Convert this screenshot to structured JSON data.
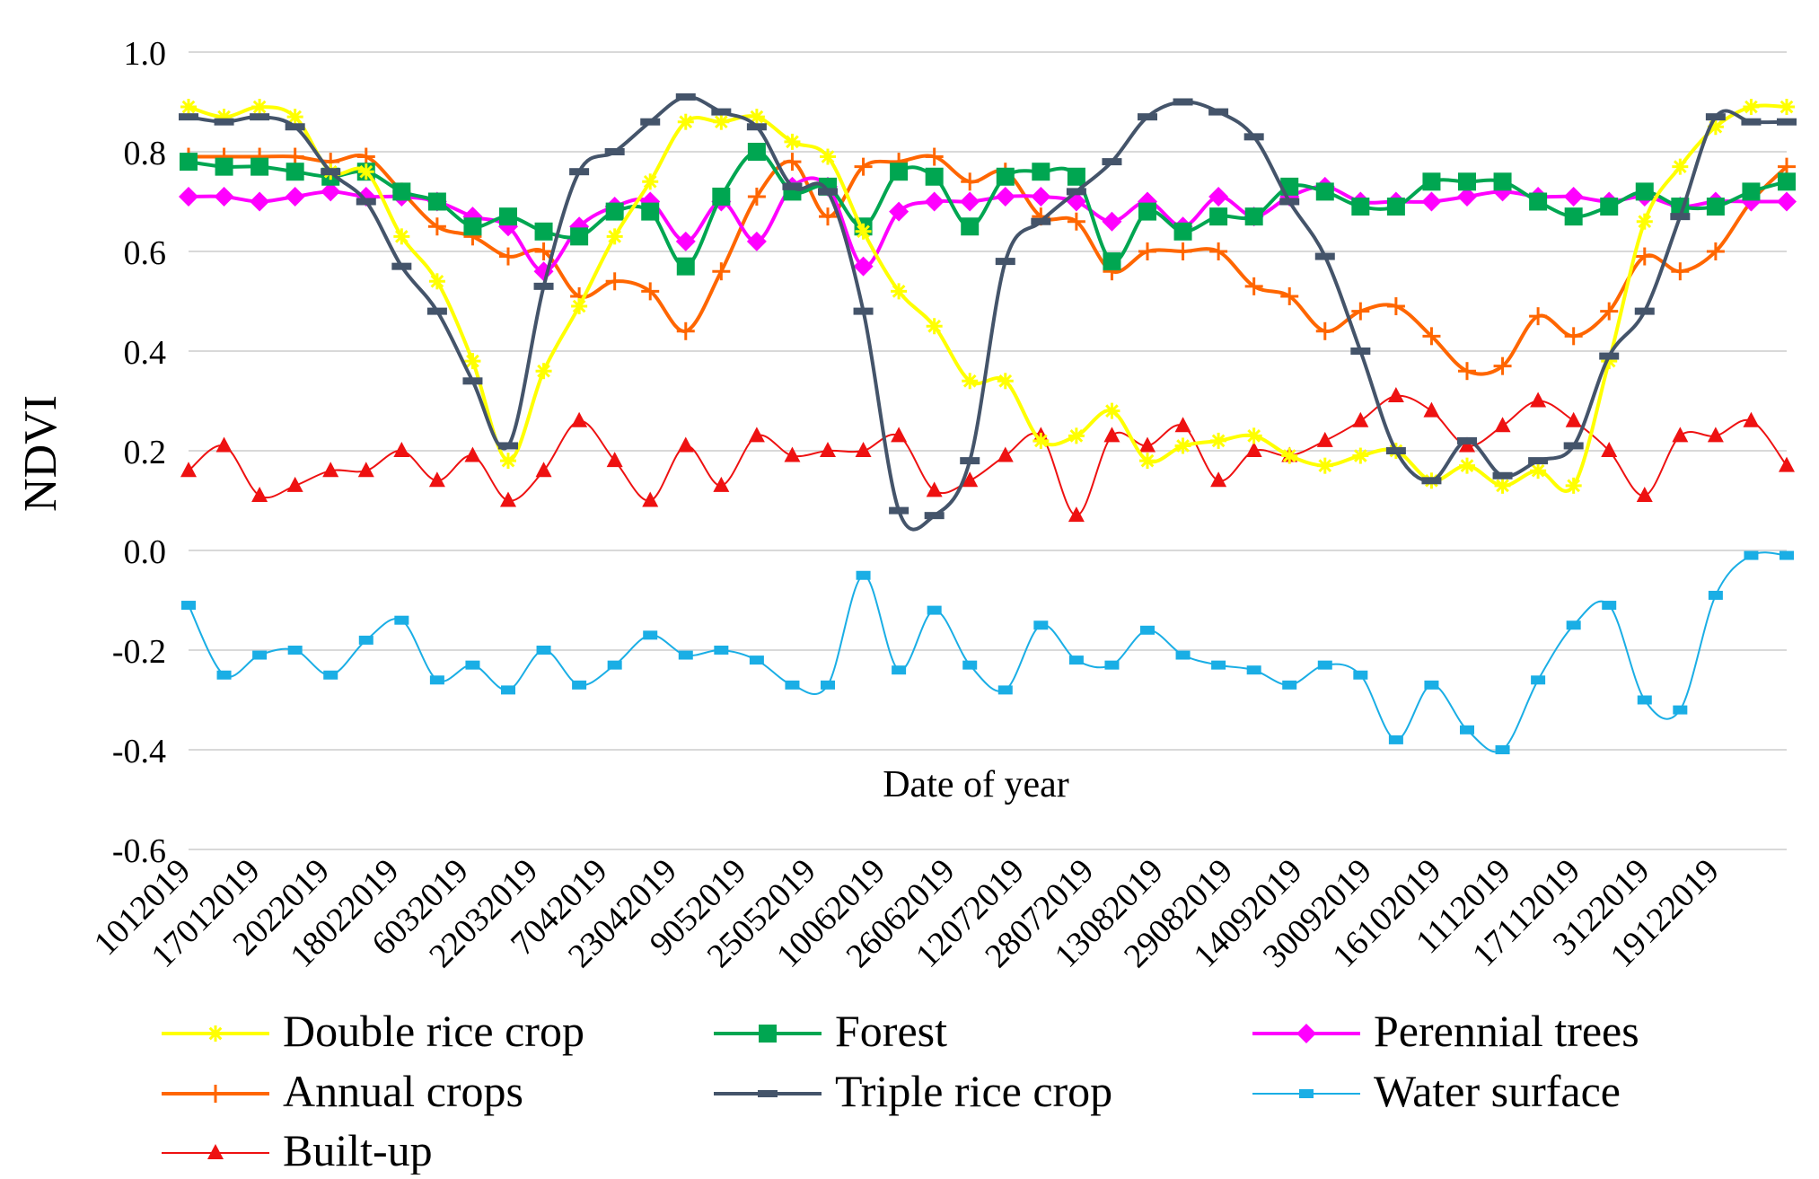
{
  "chart_data": {
    "type": "line",
    "title": "",
    "xlabel": "Date of year",
    "ylabel": "NDVI",
    "ylim": [
      -0.6,
      1.0
    ],
    "y_ticks": [
      "1.0",
      "0.8",
      "0.6",
      "0.4",
      "0.2",
      "0.0",
      "-0.2",
      "-0.4",
      "-0.6"
    ],
    "grid": "horizontal",
    "legend_position": "bottom",
    "x_tick_labels": [
      "1012019",
      "17012019",
      "2022019",
      "18022019",
      "6032019",
      "22032019",
      "7042019",
      "23042019",
      "9052019",
      "25052019",
      "10062019",
      "26062019",
      "12072019",
      "28072019",
      "13082019",
      "29082019",
      "14092019",
      "30092019",
      "16102019",
      "1112019",
      "17112019",
      "3122019",
      "19122019"
    ],
    "series": [
      {
        "name": "Double rice crop",
        "color": "#FFFF00",
        "marker": "star",
        "line_width": 4,
        "values": [
          0.89,
          0.87,
          0.89,
          0.87,
          0.76,
          0.76,
          0.63,
          0.54,
          0.38,
          0.18,
          0.36,
          0.49,
          0.63,
          0.74,
          0.86,
          0.86,
          0.87,
          0.82,
          0.79,
          0.64,
          0.52,
          0.45,
          0.34,
          0.34,
          0.22,
          0.23,
          0.28,
          0.18,
          0.21,
          0.22,
          0.23,
          0.19,
          0.17,
          0.19,
          0.2,
          0.14,
          0.17,
          0.13,
          0.16,
          0.13,
          0.38,
          0.66,
          0.77,
          0.85,
          0.89,
          0.89
        ]
      },
      {
        "name": "Forest",
        "color": "#00A651",
        "marker": "square",
        "line_width": 4,
        "values": [
          0.78,
          0.77,
          0.77,
          0.76,
          0.75,
          0.76,
          0.72,
          0.7,
          0.65,
          0.67,
          0.64,
          0.63,
          0.68,
          0.68,
          0.57,
          0.71,
          0.8,
          0.72,
          0.73,
          0.65,
          0.76,
          0.75,
          0.65,
          0.75,
          0.76,
          0.75,
          0.58,
          0.68,
          0.64,
          0.67,
          0.67,
          0.73,
          0.72,
          0.69,
          0.69,
          0.74,
          0.74,
          0.74,
          0.7,
          0.67,
          0.69,
          0.72,
          0.69,
          0.69,
          0.72,
          0.74
        ]
      },
      {
        "name": "Perennial trees",
        "color": "#FF00FF",
        "marker": "diamond",
        "line_width": 4,
        "values": [
          0.71,
          0.71,
          0.7,
          0.71,
          0.72,
          0.71,
          0.71,
          0.7,
          0.67,
          0.65,
          0.56,
          0.65,
          0.69,
          0.7,
          0.62,
          0.7,
          0.62,
          0.73,
          0.73,
          0.57,
          0.68,
          0.7,
          0.7,
          0.71,
          0.71,
          0.7,
          0.66,
          0.7,
          0.65,
          0.71,
          0.67,
          0.71,
          0.73,
          0.7,
          0.7,
          0.7,
          0.71,
          0.72,
          0.71,
          0.71,
          0.7,
          0.71,
          0.69,
          0.7,
          0.7,
          0.7
        ]
      },
      {
        "name": "Annual crops",
        "color": "#FF6600",
        "marker": "plus",
        "line_width": 4,
        "values": [
          0.79,
          0.79,
          0.79,
          0.79,
          0.78,
          0.79,
          0.72,
          0.65,
          0.63,
          0.59,
          0.6,
          0.51,
          0.54,
          0.52,
          0.44,
          0.56,
          0.71,
          0.78,
          0.67,
          0.77,
          0.78,
          0.79,
          0.74,
          0.76,
          0.67,
          0.66,
          0.56,
          0.6,
          0.6,
          0.6,
          0.53,
          0.51,
          0.44,
          0.48,
          0.49,
          0.43,
          0.36,
          0.37,
          0.47,
          0.43,
          0.48,
          0.59,
          0.56,
          0.6,
          0.7,
          0.77
        ]
      },
      {
        "name": "Triple rice crop",
        "color": "#44546A",
        "marker": "dash",
        "line_width": 4,
        "values": [
          0.87,
          0.86,
          0.87,
          0.85,
          0.76,
          0.7,
          0.57,
          0.48,
          0.34,
          0.21,
          0.53,
          0.76,
          0.8,
          0.86,
          0.91,
          0.88,
          0.85,
          0.73,
          0.72,
          0.48,
          0.08,
          0.07,
          0.18,
          0.58,
          0.66,
          0.72,
          0.78,
          0.87,
          0.9,
          0.88,
          0.83,
          0.7,
          0.59,
          0.4,
          0.2,
          0.14,
          0.22,
          0.15,
          0.18,
          0.21,
          0.39,
          0.48,
          0.67,
          0.87,
          0.86,
          0.86
        ]
      },
      {
        "name": "Water surface",
        "color": "#1AAEE5",
        "marker": "small-square",
        "line_width": 2,
        "values": [
          -0.11,
          -0.25,
          -0.21,
          -0.2,
          -0.25,
          -0.18,
          -0.14,
          -0.26,
          -0.23,
          -0.28,
          -0.2,
          -0.27,
          -0.23,
          -0.17,
          -0.21,
          -0.2,
          -0.22,
          -0.27,
          -0.27,
          -0.05,
          -0.24,
          -0.12,
          -0.23,
          -0.28,
          -0.15,
          -0.22,
          -0.23,
          -0.16,
          -0.21,
          -0.23,
          -0.24,
          -0.27,
          -0.23,
          -0.25,
          -0.38,
          -0.27,
          -0.36,
          -0.4,
          -0.26,
          -0.15,
          -0.11,
          -0.3,
          -0.32,
          -0.09,
          -0.01,
          -0.01
        ]
      },
      {
        "name": "Built-up",
        "color": "#EE1111",
        "marker": "triangle",
        "line_width": 2,
        "values": [
          0.16,
          0.21,
          0.11,
          0.13,
          0.16,
          0.16,
          0.2,
          0.14,
          0.19,
          0.1,
          0.16,
          0.26,
          0.18,
          0.1,
          0.21,
          0.13,
          0.23,
          0.19,
          0.2,
          0.2,
          0.23,
          0.12,
          0.14,
          0.19,
          0.23,
          0.07,
          0.23,
          0.21,
          0.25,
          0.14,
          0.2,
          0.19,
          0.22,
          0.26,
          0.31,
          0.28,
          0.21,
          0.25,
          0.3,
          0.26,
          0.2,
          0.11,
          0.23,
          0.23,
          0.26,
          0.17
        ]
      }
    ]
  }
}
